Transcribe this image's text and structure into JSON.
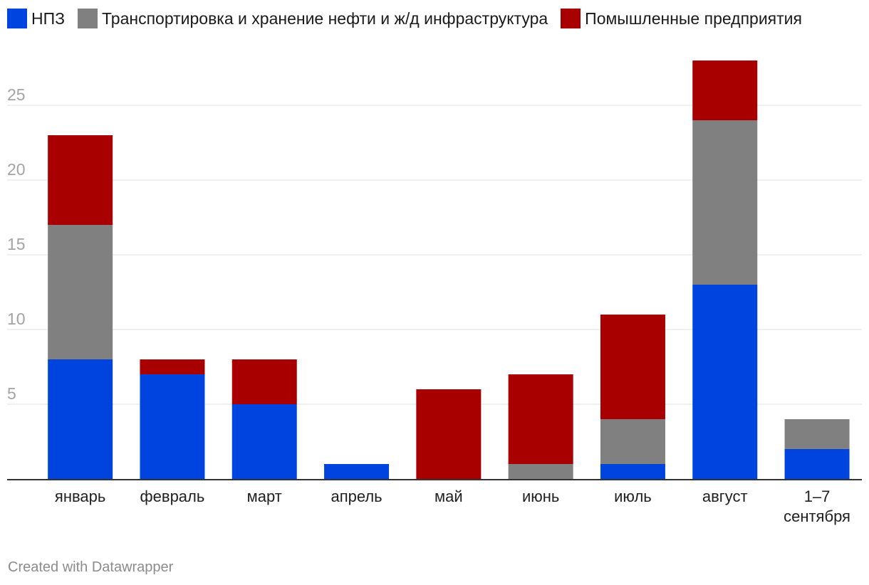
{
  "chart_data": {
    "type": "bar",
    "stacked": true,
    "categories": [
      "январь",
      "февраль",
      "март",
      "апрель",
      "май",
      "июнь",
      "июль",
      "август",
      "1–7 сентября"
    ],
    "series": [
      {
        "name": "НПЗ",
        "color": "#0044e0",
        "values": [
          8,
          7,
          5,
          1,
          0,
          0,
          1,
          13,
          2
        ]
      },
      {
        "name": "Транспортировка и хранение нефти и ж/д инфраструктура",
        "color": "#808080",
        "values": [
          9,
          0,
          0,
          0,
          0,
          1,
          3,
          11,
          2
        ]
      },
      {
        "name": "Помышленные предприятия",
        "color": "#a80000",
        "values": [
          6,
          1,
          3,
          0,
          6,
          6,
          7,
          4,
          0
        ]
      }
    ],
    "y_ticks": [
      "5",
      "10",
      "15",
      "20",
      "25"
    ],
    "ylim": [
      0,
      30
    ],
    "grid": true,
    "legend_position": "top-left"
  },
  "footer": {
    "credit": "Created with Datawrapper"
  }
}
